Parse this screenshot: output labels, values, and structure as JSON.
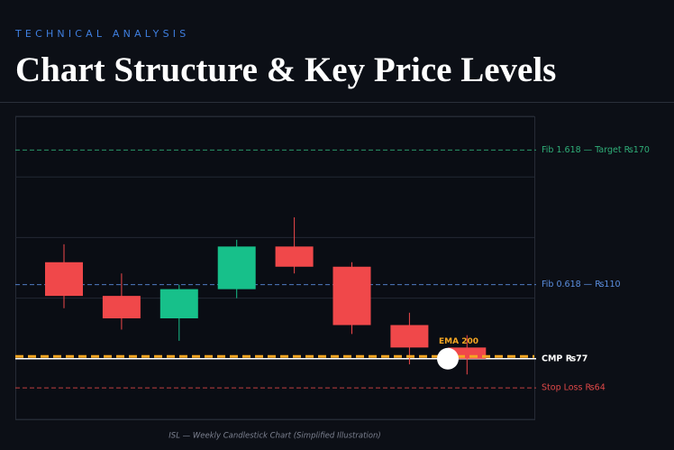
{
  "chart_data": {
    "type": "candlestick",
    "eyebrow": "TECHNICAL ANALYSIS",
    "title": "Chart Structure & Key Price Levels",
    "caption": "ISL — Weekly Candlestick Chart (Simplified Illustration)",
    "categories": [
      null,
      null,
      null,
      null,
      null,
      null,
      null,
      null
    ],
    "open": [
      120,
      105,
      95,
      108,
      127,
      118,
      92,
      82
    ],
    "high": [
      128,
      115,
      110,
      130,
      140,
      120,
      97.5,
      87.5
    ],
    "low": [
      99.5,
      90,
      85,
      104,
      115,
      88,
      74.5,
      70
    ],
    "close": [
      105,
      95,
      108,
      127,
      118,
      92,
      82,
      77
    ],
    "up_color": "#17c08a",
    "down_color": "#f0484a",
    "ylim": [
      50,
      185
    ],
    "yticks": [
      50,
      77,
      104,
      131,
      158,
      185
    ],
    "grid": true,
    "levels": [
      {
        "label": "Fib 1.618 — Target ₨170",
        "value": 170,
        "color": "#2fae78",
        "style": "dashed"
      },
      {
        "label": "Fib 0.618 — ₨110",
        "value": 110,
        "color": "#5b8fe0",
        "style": "dashed"
      },
      {
        "label": "CMP ₨77",
        "value": 77,
        "color": "#ffffff",
        "style": "solid"
      },
      {
        "label": "Stop Loss ₨64",
        "value": 64,
        "color": "#e04848",
        "style": "dashed"
      }
    ],
    "ema": {
      "label": "EMA 200",
      "value": 78,
      "color": "#f5a623"
    }
  }
}
